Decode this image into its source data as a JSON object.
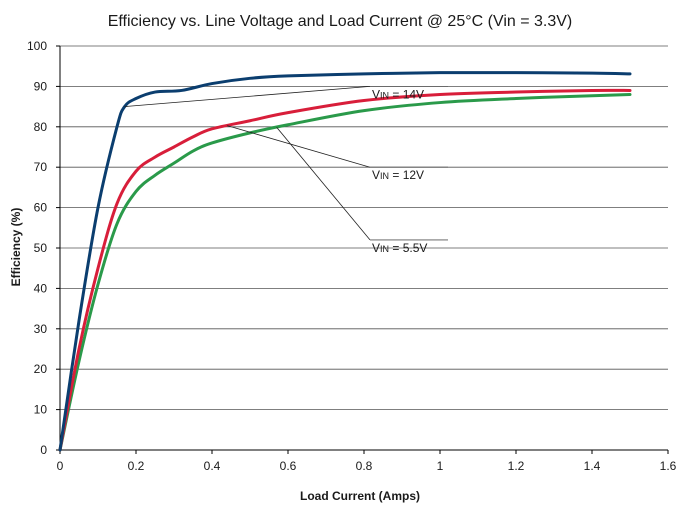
{
  "chart_data": {
    "type": "line",
    "title": "Efficiency vs. Line Voltage and Load Current @ 25°C (Vin = 3.3V)",
    "xlabel": "Load Current (Amps)",
    "ylabel": "Efficiency (%)",
    "xlim": [
      0,
      1.6
    ],
    "ylim": [
      0,
      100
    ],
    "xticks": [
      "0",
      "0.2",
      "0.4",
      "0.6",
      "0.8",
      "1",
      "1.2",
      "1.4",
      "1.6"
    ],
    "yticks": [
      "0",
      "10",
      "20",
      "30",
      "40",
      "50",
      "60",
      "70",
      "80",
      "90",
      "100"
    ],
    "grid": "horizontal",
    "series": [
      {
        "name": "VIN = 14V",
        "color": "#0b3e6f",
        "x": [
          0,
          0.05,
          0.1,
          0.15,
          0.17,
          0.2,
          0.25,
          0.32,
          0.4,
          0.5,
          0.6,
          0.8,
          1.0,
          1.2,
          1.4,
          1.5
        ],
        "y": [
          0,
          32,
          60,
          80,
          85,
          87,
          88.6,
          89,
          90.7,
          92,
          92.6,
          93.1,
          93.4,
          93.4,
          93.3,
          93.1
        ]
      },
      {
        "name": "VIN = 12V",
        "color": "#d81e3a",
        "x": [
          0,
          0.05,
          0.1,
          0.15,
          0.2,
          0.25,
          0.3,
          0.35,
          0.4,
          0.5,
          0.6,
          0.8,
          1.0,
          1.2,
          1.4,
          1.5
        ],
        "y": [
          0,
          25,
          45,
          61,
          69,
          72.5,
          75,
          77.5,
          79.5,
          81.5,
          83.5,
          86.5,
          88,
          88.6,
          89,
          89
        ]
      },
      {
        "name": "VIN = 5.5V",
        "color": "#2a9a4a",
        "x": [
          0,
          0.05,
          0.1,
          0.15,
          0.2,
          0.25,
          0.3,
          0.35,
          0.4,
          0.5,
          0.6,
          0.8,
          1.0,
          1.2,
          1.4,
          1.5
        ],
        "y": [
          0,
          22,
          41,
          56,
          64,
          68,
          71,
          74,
          76,
          78.5,
          80.5,
          84,
          86,
          87,
          87.7,
          88
        ]
      }
    ],
    "annotations": [
      {
        "prefix": "V",
        "subscript": "IN",
        "suffix": " = 14V",
        "series": 0
      },
      {
        "prefix": "V",
        "subscript": "IN",
        "suffix": " = 12V",
        "series": 1
      },
      {
        "prefix": "V",
        "subscript": "IN",
        "suffix": " = 5.5V",
        "series": 2
      }
    ]
  }
}
